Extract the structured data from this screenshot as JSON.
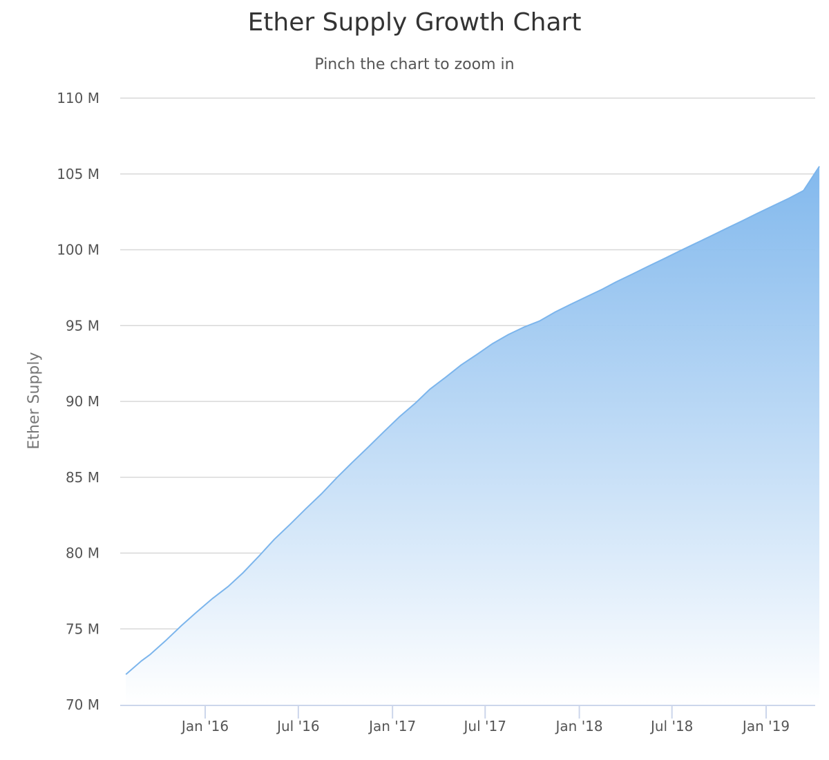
{
  "chart_data": {
    "type": "area",
    "title": "Ether Supply Growth Chart",
    "subtitle": "Pinch the chart to zoom in",
    "ylabel": "Ether Supply",
    "xlabel": "",
    "ylim": [
      70,
      110
    ],
    "y_ticks": [
      {
        "value": 70,
        "label": "70 M"
      },
      {
        "value": 75,
        "label": "75 M"
      },
      {
        "value": 80,
        "label": "80 M"
      },
      {
        "value": 85,
        "label": "85 M"
      },
      {
        "value": 90,
        "label": "90 M"
      },
      {
        "value": 95,
        "label": "95 M"
      },
      {
        "value": 100,
        "label": "100 M"
      },
      {
        "value": 105,
        "label": "105 M"
      },
      {
        "value": 110,
        "label": "110 M"
      }
    ],
    "x_ticks": [
      {
        "date": "2016-01-01",
        "label": "Jan '16"
      },
      {
        "date": "2016-07-01",
        "label": "Jul '16"
      },
      {
        "date": "2017-01-01",
        "label": "Jan '17"
      },
      {
        "date": "2017-07-01",
        "label": "Jul '17"
      },
      {
        "date": "2018-01-01",
        "label": "Jan '18"
      },
      {
        "date": "2018-07-01",
        "label": "Jul '18"
      },
      {
        "date": "2019-01-01",
        "label": "Jan '19"
      }
    ],
    "grid": true,
    "legend": false,
    "colors": {
      "line": "#7cb5ec",
      "fill_top": "#7cb5ec",
      "fill_bottom": "#ffffff",
      "grid": "#d8d8d8",
      "axis": "#ccd6eb"
    },
    "x": [
      "2015-07-30",
      "2015-08-30",
      "2015-09-15",
      "2015-10-15",
      "2015-11-15",
      "2015-12-15",
      "2016-01-15",
      "2016-02-15",
      "2016-03-15",
      "2016-04-15",
      "2016-05-15",
      "2016-06-15",
      "2016-07-15",
      "2016-08-15",
      "2016-09-15",
      "2016-10-15",
      "2016-11-15",
      "2016-12-15",
      "2017-01-15",
      "2017-02-15",
      "2017-03-15",
      "2017-04-15",
      "2017-05-15",
      "2017-06-15",
      "2017-07-15",
      "2017-08-15",
      "2017-09-15",
      "2017-10-15",
      "2017-11-15",
      "2017-12-15",
      "2018-01-15",
      "2018-02-15",
      "2018-03-15",
      "2018-04-15",
      "2018-05-15",
      "2018-06-15",
      "2018-07-15",
      "2018-08-15",
      "2018-09-15",
      "2018-10-15",
      "2018-11-15",
      "2018-12-15",
      "2019-01-15",
      "2019-02-15",
      "2019-03-15",
      "2019-04-15"
    ],
    "values": [
      72.0,
      72.9,
      73.3,
      74.2,
      75.2,
      76.1,
      77.0,
      77.8,
      78.7,
      79.8,
      80.9,
      81.9,
      82.9,
      83.9,
      85.0,
      86.0,
      87.0,
      88.0,
      89.0,
      89.9,
      90.8,
      91.6,
      92.4,
      93.1,
      93.8,
      94.4,
      94.9,
      95.3,
      95.9,
      96.4,
      96.9,
      97.4,
      97.9,
      98.4,
      98.9,
      99.4,
      99.9,
      100.4,
      100.9,
      101.4,
      101.9,
      102.4,
      102.9,
      103.4,
      103.9,
      105.5
    ]
  }
}
